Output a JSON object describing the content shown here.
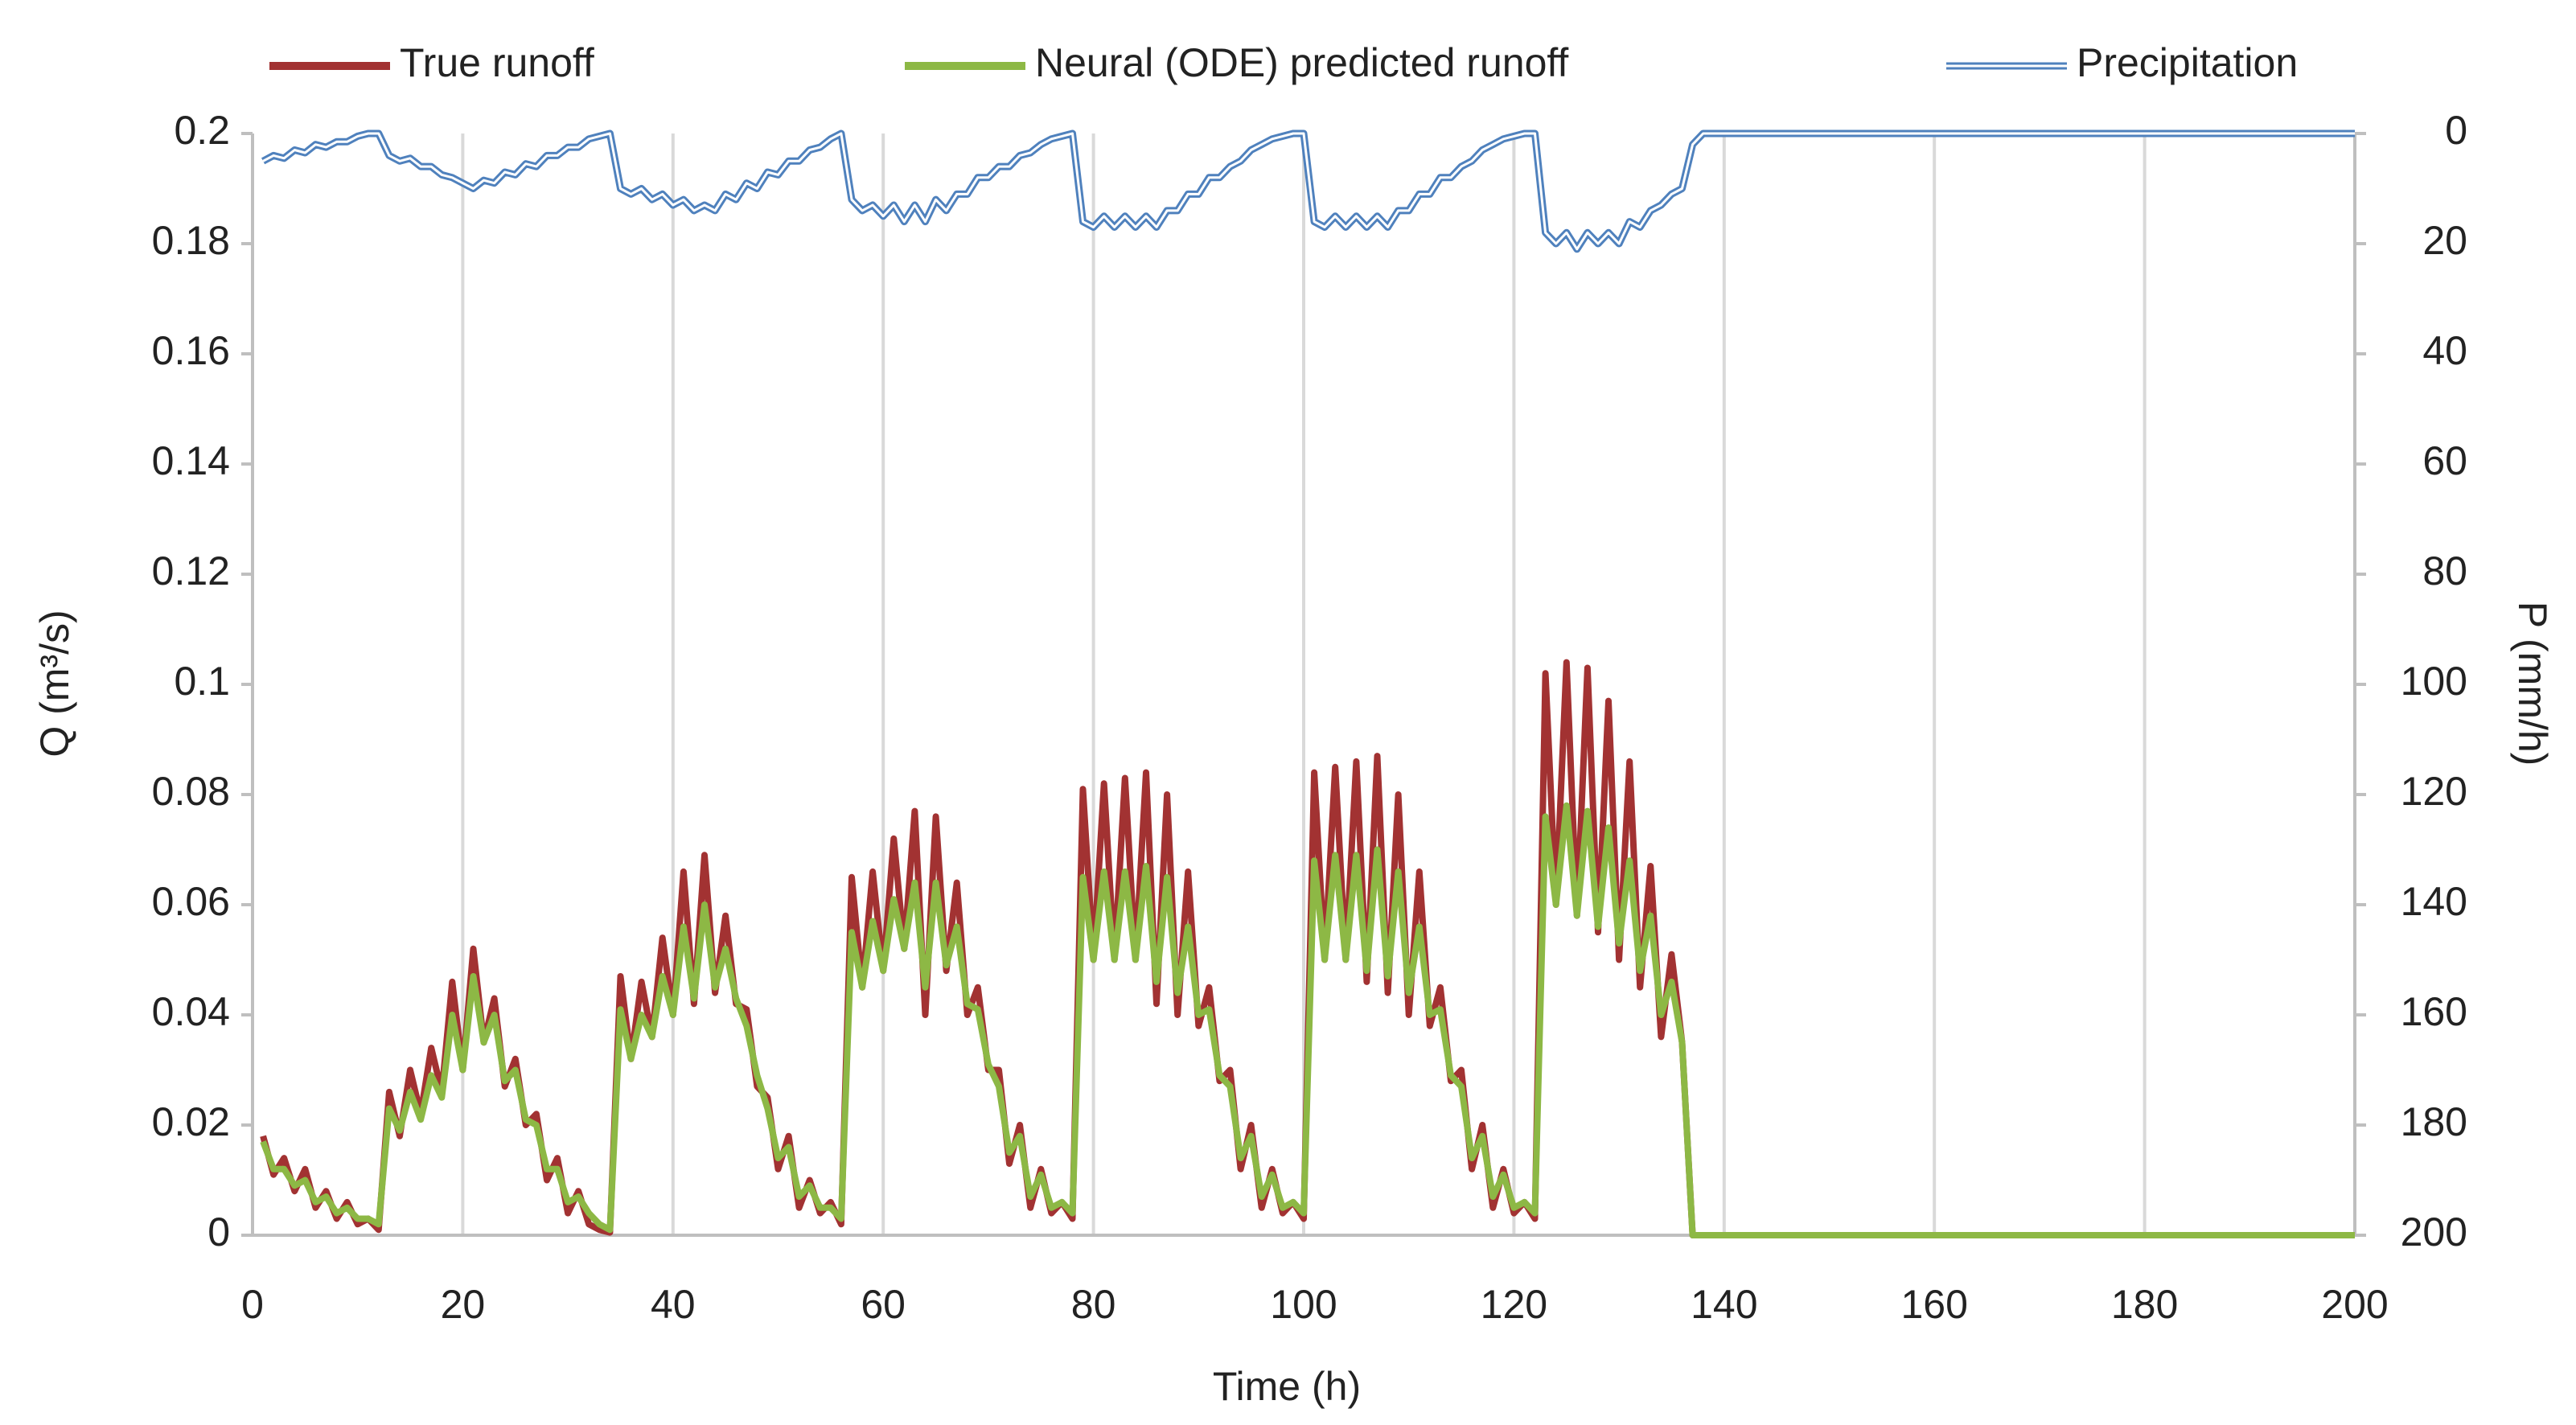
{
  "chart_data": {
    "type": "line",
    "xlabel": "Time (h)",
    "ylabel": "Q (m³/s)",
    "y2label": "P (mm/h)",
    "x": [
      1,
      2,
      3,
      4,
      5,
      6,
      7,
      8,
      9,
      10,
      11,
      12,
      13,
      14,
      15,
      16,
      17,
      18,
      19,
      20,
      21,
      22,
      23,
      24,
      25,
      26,
      27,
      28,
      29,
      30,
      31,
      32,
      33,
      34,
      35,
      36,
      37,
      38,
      39,
      40,
      41,
      42,
      43,
      44,
      45,
      46,
      47,
      48,
      49,
      50,
      51,
      52,
      53,
      54,
      55,
      56,
      57,
      58,
      59,
      60,
      61,
      62,
      63,
      64,
      65,
      66,
      67,
      68,
      69,
      70,
      71,
      72,
      73,
      74,
      75,
      76,
      77,
      78,
      79,
      80,
      81,
      82,
      83,
      84,
      85,
      86,
      87,
      88,
      89,
      90,
      91,
      92,
      93,
      94,
      95,
      96,
      97,
      98,
      99,
      100,
      101,
      102,
      103,
      104,
      105,
      106,
      107,
      108,
      109,
      110,
      111,
      112,
      113,
      114,
      115,
      116,
      117,
      118,
      119,
      120,
      121,
      122,
      123,
      124,
      125,
      126,
      127,
      128,
      129,
      130,
      131,
      132,
      133,
      134,
      135,
      136,
      137,
      138,
      200
    ],
    "series": [
      {
        "name": "True runoff",
        "color": "#a23232",
        "axis": "y",
        "values": [
          0.018,
          0.011,
          0.014,
          0.008,
          0.012,
          0.005,
          0.008,
          0.003,
          0.006,
          0.002,
          0.003,
          0.001,
          0.026,
          0.018,
          0.03,
          0.022,
          0.034,
          0.026,
          0.046,
          0.03,
          0.052,
          0.035,
          0.043,
          0.027,
          0.032,
          0.02,
          0.022,
          0.01,
          0.014,
          0.004,
          0.008,
          0.002,
          0.001,
          0.0005,
          0.047,
          0.032,
          0.046,
          0.036,
          0.054,
          0.04,
          0.066,
          0.042,
          0.069,
          0.044,
          0.058,
          0.042,
          0.041,
          0.027,
          0.025,
          0.012,
          0.018,
          0.005,
          0.01,
          0.004,
          0.006,
          0.002,
          0.065,
          0.045,
          0.066,
          0.048,
          0.072,
          0.052,
          0.077,
          0.04,
          0.076,
          0.048,
          0.064,
          0.04,
          0.045,
          0.03,
          0.03,
          0.013,
          0.02,
          0.005,
          0.012,
          0.004,
          0.006,
          0.003,
          0.081,
          0.05,
          0.082,
          0.05,
          0.083,
          0.05,
          0.084,
          0.042,
          0.08,
          0.04,
          0.066,
          0.038,
          0.045,
          0.028,
          0.03,
          0.012,
          0.02,
          0.005,
          0.012,
          0.004,
          0.006,
          0.003,
          0.084,
          0.05,
          0.085,
          0.05,
          0.086,
          0.046,
          0.087,
          0.044,
          0.08,
          0.04,
          0.066,
          0.038,
          0.045,
          0.028,
          0.03,
          0.012,
          0.02,
          0.005,
          0.012,
          0.004,
          0.006,
          0.003,
          0.102,
          0.06,
          0.104,
          0.058,
          0.103,
          0.055,
          0.097,
          0.05,
          0.086,
          0.045,
          0.067,
          0.036,
          0.051,
          0.035,
          0,
          0,
          0
        ]
      },
      {
        "name": "Neural (ODE) predicted runoff",
        "color": "#8db845",
        "axis": "y",
        "values": [
          0.017,
          0.012,
          0.012,
          0.009,
          0.01,
          0.006,
          0.007,
          0.004,
          0.005,
          0.003,
          0.003,
          0.002,
          0.023,
          0.019,
          0.026,
          0.021,
          0.029,
          0.025,
          0.04,
          0.03,
          0.047,
          0.035,
          0.04,
          0.028,
          0.03,
          0.021,
          0.02,
          0.012,
          0.012,
          0.006,
          0.007,
          0.004,
          0.002,
          0.001,
          0.041,
          0.032,
          0.04,
          0.036,
          0.047,
          0.04,
          0.056,
          0.043,
          0.06,
          0.045,
          0.052,
          0.043,
          0.038,
          0.029,
          0.023,
          0.014,
          0.016,
          0.007,
          0.009,
          0.005,
          0.005,
          0.003,
          0.055,
          0.045,
          0.057,
          0.048,
          0.061,
          0.052,
          0.064,
          0.045,
          0.064,
          0.049,
          0.056,
          0.042,
          0.041,
          0.031,
          0.027,
          0.015,
          0.018,
          0.007,
          0.011,
          0.005,
          0.006,
          0.004,
          0.065,
          0.05,
          0.066,
          0.05,
          0.066,
          0.05,
          0.067,
          0.046,
          0.065,
          0.044,
          0.056,
          0.04,
          0.041,
          0.029,
          0.027,
          0.014,
          0.018,
          0.007,
          0.011,
          0.005,
          0.006,
          0.004,
          0.068,
          0.05,
          0.069,
          0.05,
          0.069,
          0.048,
          0.07,
          0.047,
          0.066,
          0.044,
          0.056,
          0.04,
          0.041,
          0.029,
          0.027,
          0.014,
          0.018,
          0.007,
          0.011,
          0.005,
          0.006,
          0.004,
          0.076,
          0.06,
          0.078,
          0.058,
          0.077,
          0.056,
          0.074,
          0.053,
          0.068,
          0.048,
          0.058,
          0.04,
          0.046,
          0.035,
          0,
          0,
          0
        ]
      },
      {
        "name": "Precipitation",
        "color": "#4f81bd",
        "axis": "y2",
        "values": [
          5,
          4,
          4.5,
          3,
          3.5,
          2,
          2.5,
          1.5,
          1.5,
          0.5,
          0,
          0,
          4,
          5,
          4.5,
          6,
          6,
          7.5,
          8,
          9,
          10,
          8.5,
          9,
          7,
          7.5,
          5.5,
          6,
          4,
          4,
          2.5,
          2.5,
          1,
          0.5,
          0,
          10,
          11,
          10,
          12,
          11,
          13,
          12,
          14,
          13,
          14,
          11,
          12,
          9,
          10,
          7,
          7.5,
          5,
          5,
          3,
          2.5,
          1,
          0,
          12,
          14,
          13,
          15,
          13,
          16,
          13,
          16,
          12,
          14,
          11,
          11,
          8,
          8,
          6,
          6,
          4,
          3.5,
          2,
          1,
          0.5,
          0,
          16,
          17,
          15,
          17,
          15,
          17,
          15,
          17,
          14,
          14,
          11,
          11,
          8,
          8,
          6,
          5,
          3,
          2,
          1,
          0.5,
          0,
          0,
          16,
          17,
          15,
          17,
          15,
          17,
          15,
          17,
          14,
          14,
          11,
          11,
          8,
          8,
          6,
          5,
          3,
          2,
          1,
          0.5,
          0,
          0,
          18,
          20,
          18,
          21,
          18,
          20,
          18,
          20,
          16,
          17,
          14,
          13,
          11,
          10,
          2,
          0,
          0
        ]
      }
    ],
    "xlim": [
      0,
      200
    ],
    "xticks": [
      0,
      20,
      40,
      60,
      80,
      100,
      120,
      140,
      160,
      180,
      200
    ],
    "ylim": [
      0,
      0.2
    ],
    "yticks": [
      0,
      0.02,
      0.04,
      0.06,
      0.08,
      0.1,
      0.12,
      0.14,
      0.16,
      0.18,
      0.2
    ],
    "y2lim": [
      200,
      0
    ],
    "y2ticks": [
      0,
      20,
      40,
      60,
      80,
      100,
      120,
      140,
      160,
      180,
      200
    ],
    "xgrid": true,
    "legend": "top"
  }
}
